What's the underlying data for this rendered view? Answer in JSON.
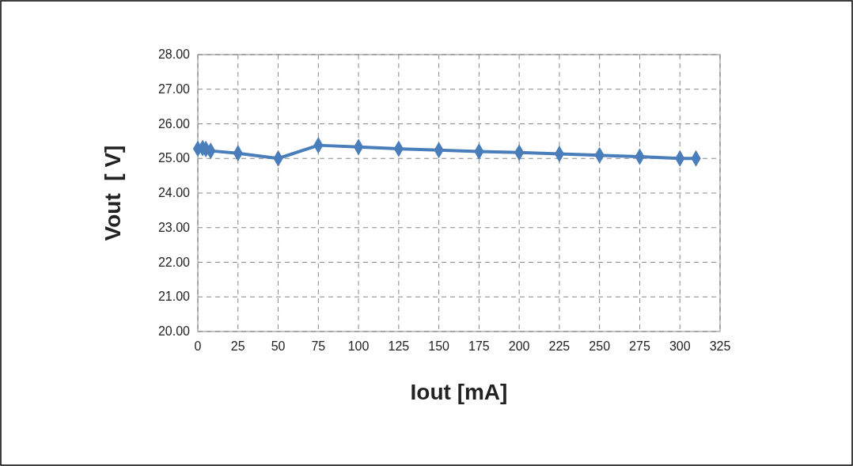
{
  "chart_data": {
    "type": "line",
    "xlabel": "Iout [mA]",
    "ylabel": "Vout  [ V]",
    "x": [
      0,
      3,
      5,
      8,
      25,
      50,
      75,
      100,
      125,
      150,
      175,
      200,
      225,
      250,
      275,
      300,
      310
    ],
    "series": [
      {
        "color": "#4a7ebb",
        "values": [
          25.28,
          25.3,
          25.27,
          25.22,
          25.15,
          25.0,
          25.38,
          25.33,
          25.28,
          25.24,
          25.2,
          25.17,
          25.13,
          25.09,
          25.05,
          25.0,
          25.0
        ]
      }
    ],
    "xlim": [
      0,
      325
    ],
    "xticks": [
      0,
      25,
      50,
      75,
      100,
      125,
      150,
      175,
      200,
      225,
      250,
      275,
      300,
      325
    ],
    "ylim": [
      20,
      28
    ],
    "yticks": [
      {
        "value": 20,
        "label": "20.00"
      },
      {
        "value": 21,
        "label": "21.00"
      },
      {
        "value": 22,
        "label": "22.00"
      },
      {
        "value": 23,
        "label": "23.00"
      },
      {
        "value": 24,
        "label": "24.00"
      },
      {
        "value": 25,
        "label": "25.00"
      },
      {
        "value": 26,
        "label": "26.00"
      },
      {
        "value": 27,
        "label": "27.00"
      },
      {
        "value": 28,
        "label": "28.00"
      }
    ],
    "grid": true,
    "marker": "diamond",
    "line_style": "solid"
  }
}
